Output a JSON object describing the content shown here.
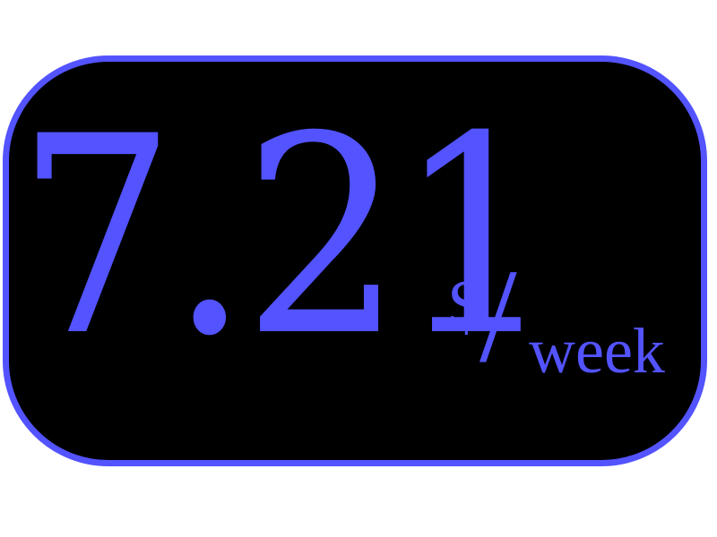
{
  "price": {
    "amount": "7.21",
    "currency": "$",
    "separator": "/",
    "unit": "week"
  },
  "colors": {
    "accent": "#5353ff",
    "background": "#000000",
    "page": "#ffffff"
  }
}
